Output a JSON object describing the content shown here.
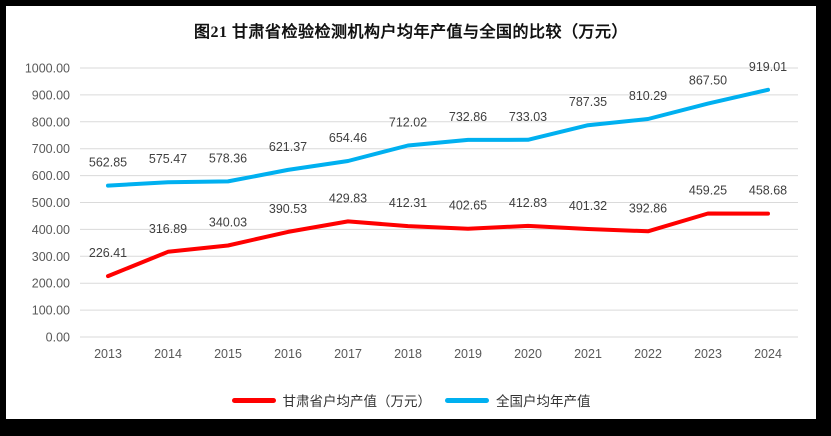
{
  "chart_data": {
    "type": "line",
    "title": "图21 甘肃省检验检测机构户均年产值与全国的比较（万元）",
    "x": [
      "2013",
      "2014",
      "2015",
      "2016",
      "2017",
      "2018",
      "2019",
      "2020",
      "2021",
      "2022",
      "2023",
      "2024"
    ],
    "series": [
      {
        "name": "甘肃省户均产值（万元）",
        "color": "#FF0000",
        "values": [
          226.41,
          316.89,
          340.03,
          390.53,
          429.83,
          412.31,
          402.65,
          412.83,
          401.32,
          392.86,
          459.25,
          458.68
        ],
        "labels": [
          "226.41",
          "316.89",
          "340.03",
          "390.53",
          "429.83",
          "412.31",
          "402.65",
          "412.83",
          "401.32",
          "392.86",
          "459.25",
          "458.68"
        ]
      },
      {
        "name": "全国户均年产值",
        "color": "#00B0F0",
        "values": [
          562.85,
          575.47,
          578.36,
          621.37,
          654.46,
          712.02,
          732.86,
          733.03,
          787.35,
          810.29,
          867.5,
          919.01
        ],
        "labels": [
          "562.85",
          "575.47",
          "578.36",
          "621.37",
          "654.46",
          "712.02",
          "732.86",
          "733.03",
          "787.35",
          "810.29",
          "867.50",
          "919.01"
        ]
      }
    ],
    "ylim": [
      0,
      1000
    ],
    "ystep": 100,
    "ytick_decimals": 2,
    "grid": true,
    "legend_position": "bottom"
  },
  "colors": {
    "gridline": "#DADADA",
    "axis_text": "#595959",
    "data_label": "#404040",
    "frame": "#000000",
    "background": "#FFFFFF"
  }
}
